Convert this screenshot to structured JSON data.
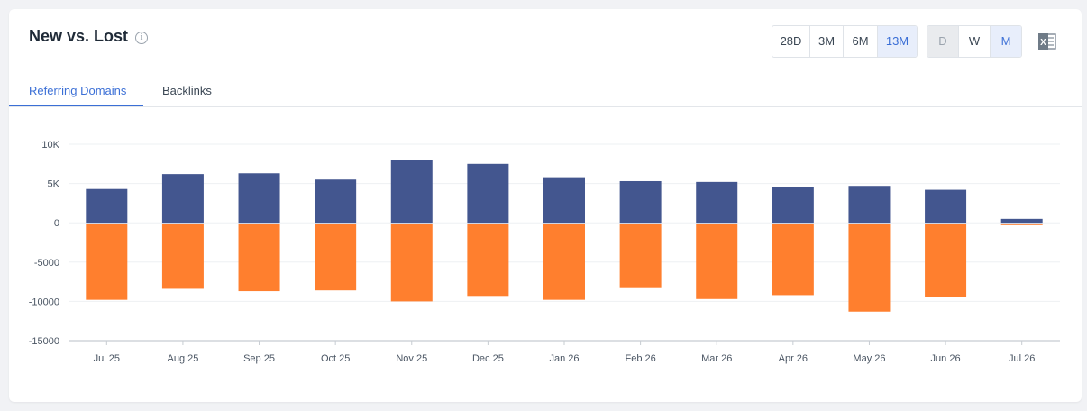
{
  "title": "New vs. Lost",
  "range_buttons": [
    "28D",
    "3M",
    "6M",
    "13M"
  ],
  "range_selected": "13M",
  "granularity_buttons": [
    "D",
    "W",
    "M"
  ],
  "granularity_selected": "M",
  "granularity_disabled": "D",
  "tabs": [
    "Referring Domains",
    "Backlinks"
  ],
  "tab_selected": "Referring Domains",
  "export_icon": "excel-icon",
  "colors": {
    "new": "#43568f",
    "lost": "#ff7f2e",
    "accent": "#3b6fd6"
  },
  "chart_data": {
    "type": "bar",
    "categories": [
      "Jul 25",
      "Aug 25",
      "Sep 25",
      "Oct 25",
      "Nov 25",
      "Dec 25",
      "Jan 26",
      "Feb 26",
      "Mar 26",
      "Apr 26",
      "May 26",
      "Jun 26",
      "Jul 26"
    ],
    "series": [
      {
        "values": [
          4300,
          6200,
          6300,
          5500,
          8000,
          7500,
          5800,
          5300,
          5200,
          4500,
          4700,
          4200,
          500
        ]
      },
      {
        "values": [
          -9800,
          -8400,
          -8700,
          -8600,
          -10000,
          -9300,
          -9800,
          -8200,
          -9700,
          -9200,
          -11300,
          -9400,
          -300
        ]
      }
    ],
    "ylim": [
      -15000,
      10000
    ],
    "yticks": [
      10000,
      5000,
      0,
      -5000,
      -10000,
      -15000
    ],
    "ytick_labels": [
      "10K",
      "5K",
      "0",
      "-5000",
      "-10000",
      "-15000"
    ],
    "grid": true,
    "stacked": true
  }
}
